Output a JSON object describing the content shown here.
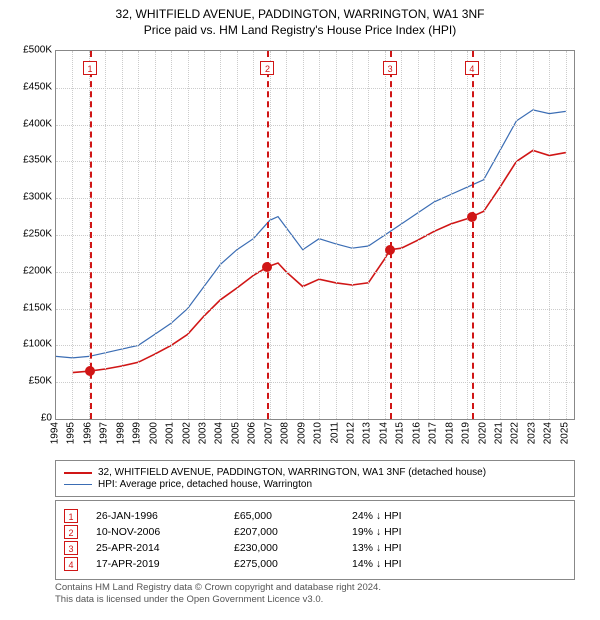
{
  "title_line1": "32, WHITFIELD AVENUE, PADDINGTON, WARRINGTON, WA1 3NF",
  "title_line2": "Price paid vs. HM Land Registry's House Price Index (HPI)",
  "chart": {
    "type": "line",
    "background_color": "#ffffff",
    "grid_color": "#cccccc",
    "border_color": "#888888",
    "xlim": [
      1994,
      2025.5
    ],
    "ylim": [
      0,
      500000
    ],
    "ytick_step": 50000,
    "ytick_labels": [
      "£0",
      "£50K",
      "£100K",
      "£150K",
      "£200K",
      "£250K",
      "£300K",
      "£350K",
      "£400K",
      "£450K",
      "£500K"
    ],
    "xticks": [
      1994,
      1995,
      1996,
      1997,
      1998,
      1999,
      2000,
      2001,
      2002,
      2003,
      2004,
      2005,
      2006,
      2007,
      2008,
      2009,
      2010,
      2011,
      2012,
      2013,
      2014,
      2015,
      2016,
      2017,
      2018,
      2019,
      2020,
      2021,
      2022,
      2023,
      2024,
      2025
    ],
    "series": [
      {
        "id": "hpi",
        "label": "HPI: Average price, detached house, Warrington",
        "color": "#3b6db4",
        "line_width": 1.2,
        "data": [
          [
            1994,
            85000
          ],
          [
            1995,
            83000
          ],
          [
            1996,
            85000
          ],
          [
            1997,
            90000
          ],
          [
            1998,
            95000
          ],
          [
            1999,
            100000
          ],
          [
            2000,
            115000
          ],
          [
            2001,
            130000
          ],
          [
            2002,
            150000
          ],
          [
            2003,
            180000
          ],
          [
            2004,
            210000
          ],
          [
            2005,
            230000
          ],
          [
            2006,
            245000
          ],
          [
            2007,
            270000
          ],
          [
            2007.5,
            275000
          ],
          [
            2008,
            260000
          ],
          [
            2009,
            230000
          ],
          [
            2010,
            245000
          ],
          [
            2011,
            238000
          ],
          [
            2012,
            232000
          ],
          [
            2013,
            235000
          ],
          [
            2014,
            250000
          ],
          [
            2015,
            265000
          ],
          [
            2016,
            280000
          ],
          [
            2017,
            295000
          ],
          [
            2018,
            305000
          ],
          [
            2019,
            315000
          ],
          [
            2020,
            325000
          ],
          [
            2021,
            365000
          ],
          [
            2022,
            405000
          ],
          [
            2023,
            420000
          ],
          [
            2024,
            415000
          ],
          [
            2025,
            418000
          ]
        ]
      },
      {
        "id": "property",
        "label": "32, WHITFIELD AVENUE, PADDINGTON, WARRINGTON, WA1 3NF (detached house)",
        "color": "#d01616",
        "line_width": 1.6,
        "data": [
          [
            1995,
            63000
          ],
          [
            1996,
            65000
          ],
          [
            1997,
            68000
          ],
          [
            1998,
            72000
          ],
          [
            1999,
            77000
          ],
          [
            2000,
            88000
          ],
          [
            2001,
            100000
          ],
          [
            2002,
            115000
          ],
          [
            2003,
            140000
          ],
          [
            2004,
            162000
          ],
          [
            2005,
            178000
          ],
          [
            2006,
            195000
          ],
          [
            2006.9,
            207000
          ],
          [
            2007.5,
            212000
          ],
          [
            2008,
            200000
          ],
          [
            2009,
            180000
          ],
          [
            2010,
            190000
          ],
          [
            2011,
            185000
          ],
          [
            2012,
            182000
          ],
          [
            2013,
            185000
          ],
          [
            2014,
            218000
          ],
          [
            2014.3,
            230000
          ],
          [
            2015,
            232000
          ],
          [
            2016,
            243000
          ],
          [
            2017,
            255000
          ],
          [
            2018,
            265000
          ],
          [
            2019,
            272000
          ],
          [
            2019.3,
            275000
          ],
          [
            2020,
            282000
          ],
          [
            2021,
            315000
          ],
          [
            2022,
            350000
          ],
          [
            2023,
            365000
          ],
          [
            2024,
            358000
          ],
          [
            2025,
            362000
          ]
        ]
      }
    ],
    "markers": [
      {
        "n": "1",
        "x": 1996.07,
        "y": 65000
      },
      {
        "n": "2",
        "x": 2006.86,
        "y": 207000
      },
      {
        "n": "3",
        "x": 2014.32,
        "y": 230000
      },
      {
        "n": "4",
        "x": 2019.29,
        "y": 275000
      }
    ],
    "marker_color": "#d01616"
  },
  "legend": {
    "border_color": "#888888",
    "items": [
      {
        "color": "#d01616",
        "width": 2,
        "label": "32, WHITFIELD AVENUE, PADDINGTON, WARRINGTON, WA1 3NF (detached house)"
      },
      {
        "color": "#3b6db4",
        "width": 1,
        "label": "HPI: Average price, detached house, Warrington"
      }
    ]
  },
  "sales": [
    {
      "n": "1",
      "date": "26-JAN-1996",
      "price": "£65,000",
      "diff": "24% ↓ HPI"
    },
    {
      "n": "2",
      "date": "10-NOV-2006",
      "price": "£207,000",
      "diff": "19% ↓ HPI"
    },
    {
      "n": "3",
      "date": "25-APR-2014",
      "price": "£230,000",
      "diff": "13% ↓ HPI"
    },
    {
      "n": "4",
      "date": "17-APR-2019",
      "price": "£275,000",
      "diff": "14% ↓ HPI"
    }
  ],
  "footer_line1": "Contains HM Land Registry data © Crown copyright and database right 2024.",
  "footer_line2": "This data is licensed under the Open Government Licence v3.0."
}
